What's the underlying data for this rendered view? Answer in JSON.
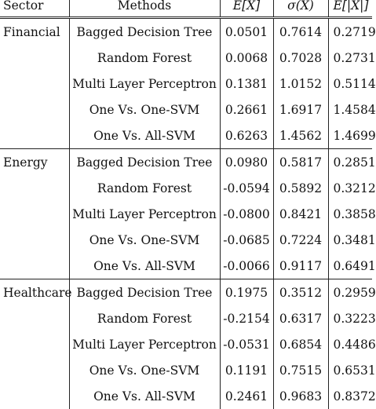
{
  "headers": {
    "sector": "Sector",
    "methods": "Methods",
    "expectation": "E[X]",
    "std": "σ(X)",
    "abs_expectation": "E[|X|]"
  },
  "groups": [
    {
      "sector": "Financial",
      "rows": [
        {
          "method": "Bagged Decision Tree",
          "e": "0.0501",
          "s": "0.7614",
          "abs": "0.2719"
        },
        {
          "method": "Random Forest",
          "e": "0.0068",
          "s": "0.7028",
          "abs": "0.2731"
        },
        {
          "method": "Multi Layer Perceptron",
          "e": "0.1381",
          "s": "1.0152",
          "abs": "0.5114"
        },
        {
          "method": "One Vs. One-SVM",
          "e": "0.2661",
          "s": "1.6917",
          "abs": "1.4584"
        },
        {
          "method": "One Vs. All-SVM",
          "e": "0.6263",
          "s": "1.4562",
          "abs": "1.4699"
        }
      ]
    },
    {
      "sector": "Energy",
      "rows": [
        {
          "method": "Bagged Decision Tree",
          "e": "0.0980",
          "s": "0.5817",
          "abs": "0.2851"
        },
        {
          "method": "Random Forest",
          "e": "-0.0594",
          "s": "0.5892",
          "abs": "0.3212"
        },
        {
          "method": "Multi Layer Perceptron",
          "e": "-0.0800",
          "s": "0.8421",
          "abs": "0.3858"
        },
        {
          "method": "One Vs. One-SVM",
          "e": "-0.0685",
          "s": "0.7224",
          "abs": "0.3481"
        },
        {
          "method": "One Vs. All-SVM",
          "e": "-0.0066",
          "s": "0.9117",
          "abs": "0.6491"
        }
      ]
    },
    {
      "sector": "Healthcare",
      "rows": [
        {
          "method": "Bagged Decision Tree",
          "e": "0.1975",
          "s": "0.3512",
          "abs": "0.2959"
        },
        {
          "method": "Random Forest",
          "e": "-0.2154",
          "s": "0.6317",
          "abs": "0.3223"
        },
        {
          "method": "Multi Layer Perceptron",
          "e": "-0.0531",
          "s": "0.6854",
          "abs": "0.4486"
        },
        {
          "method": "One Vs. One-SVM",
          "e": "0.1191",
          "s": "0.7515",
          "abs": "0.6531"
        },
        {
          "method": "One Vs. All-SVM",
          "e": "0.2461",
          "s": "0.9683",
          "abs": "0.8372"
        }
      ]
    }
  ]
}
